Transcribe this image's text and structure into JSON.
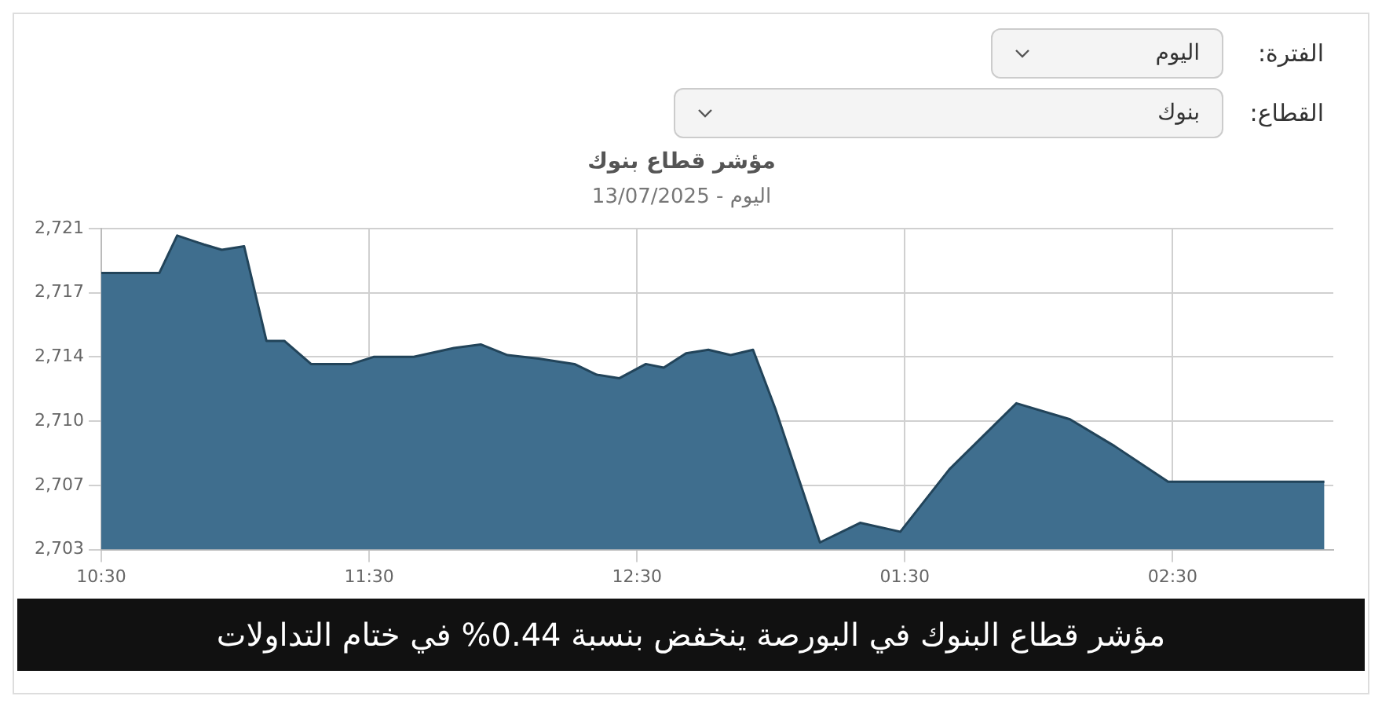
{
  "chart_data": {
    "type": "area",
    "title": "مؤشر قطاع بنوك",
    "subtitle": "اليوم - 13/07/2025",
    "annotations": [
      "الفترة:",
      "اليوم",
      "القطاع:",
      "بنوك",
      "مؤشر قطاع البنوك في البورصة ينخفض بنسبة 0.44% في ختام التداولات"
    ],
    "x": [
      "2025-07-13T10:30",
      "2025-07-13T10:43",
      "2025-07-13T10:47",
      "2025-07-13T10:53",
      "2025-07-13T10:57",
      "2025-07-13T11:02",
      "2025-07-13T11:07",
      "2025-07-13T11:11",
      "2025-07-13T11:17",
      "2025-07-13T11:26",
      "2025-07-13T11:31",
      "2025-07-13T11:40",
      "2025-07-13T11:49",
      "2025-07-13T11:55",
      "2025-07-13T12:01",
      "2025-07-13T12:08",
      "2025-07-13T12:16",
      "2025-07-13T12:21",
      "2025-07-13T12:26",
      "2025-07-13T12:32",
      "2025-07-13T12:36",
      "2025-07-13T12:41",
      "2025-07-13T12:46",
      "2025-07-13T12:51",
      "2025-07-13T12:56",
      "2025-07-13T13:01",
      "2025-07-13T13:11",
      "2025-07-13T13:20",
      "2025-07-13T13:29",
      "2025-07-13T13:40",
      "2025-07-13T13:55",
      "2025-07-13T14:07",
      "2025-07-13T14:17",
      "2025-07-13T14:29",
      "2025-07-13T15:04"
    ],
    "series": [
      {
        "color": "#3f6e8e",
        "values": [
          2718.5,
          2718.5,
          2720.6,
          2720.1,
          2719.8,
          2720.0,
          2714.7,
          2714.7,
          2713.4,
          2713.4,
          2713.8,
          2713.8,
          2714.3,
          2714.5,
          2713.9,
          2713.7,
          2713.4,
          2712.8,
          2712.6,
          2713.4,
          2713.2,
          2714.0,
          2714.2,
          2713.9,
          2714.2,
          2710.9,
          2703.4,
          2704.5,
          2704.0,
          2707.5,
          2711.2,
          2710.3,
          2708.8,
          2706.8,
          2706.8
        ]
      }
    ],
    "xlim": [
      "2025-07-13T10:30",
      "2025-07-13T15:06"
    ],
    "xticks": [
      {
        "value": "2025-07-13T10:30",
        "label": "10:30"
      },
      {
        "value": "2025-07-13T11:30",
        "label": "11:30"
      },
      {
        "value": "2025-07-13T12:30",
        "label": "12:30"
      },
      {
        "value": "2025-07-13T13:30",
        "label": "01:30"
      },
      {
        "value": "2025-07-13T14:30",
        "label": "02:30"
      }
    ],
    "ylim": [
      2703,
      2721
    ],
    "yticks": [
      {
        "value": 2703,
        "label": "2,703"
      },
      {
        "value": 2706.6,
        "label": "2,707"
      },
      {
        "value": 2710.2,
        "label": "2,710"
      },
      {
        "value": 2713.8,
        "label": "2,714"
      },
      {
        "value": 2717.4,
        "label": "2,717"
      },
      {
        "value": 2721,
        "label": "2,721"
      }
    ],
    "grid": true,
    "legend": false,
    "marker": "none",
    "line_style": "solid"
  }
}
